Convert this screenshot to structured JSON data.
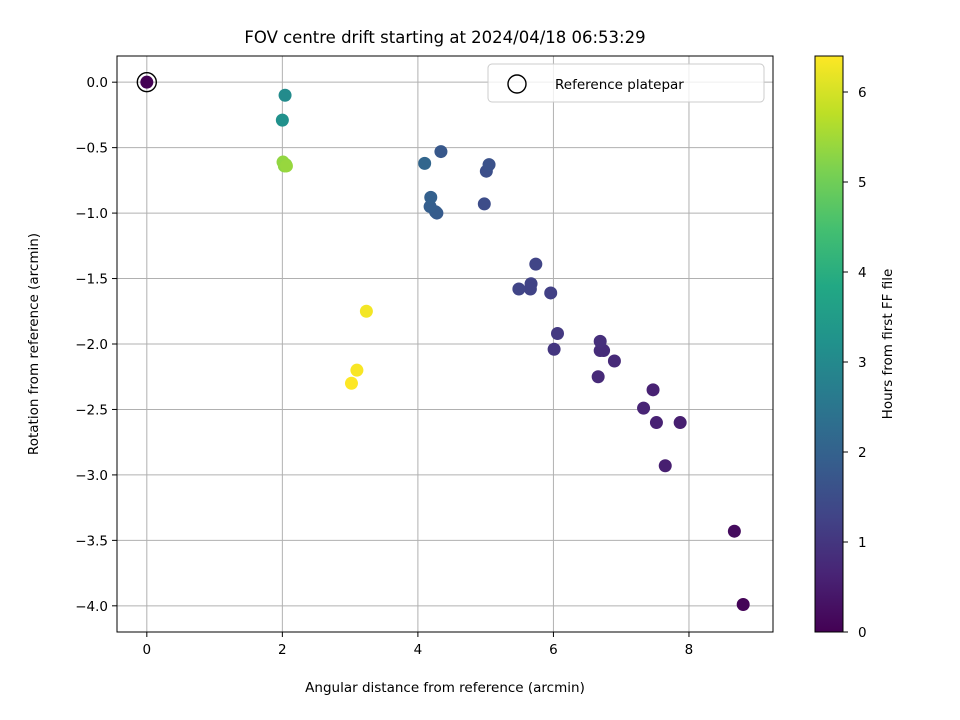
{
  "chart_data": {
    "type": "scatter",
    "title": "FOV centre drift starting at 2024/04/18 06:53:29",
    "xlabel": "Angular distance from reference (arcmin)",
    "ylabel": "Rotation from reference (arcmin)",
    "xlim": [
      -0.44,
      9.24
    ],
    "ylim": [
      -4.2,
      0.2
    ],
    "xticks": [
      0,
      2,
      4,
      6,
      8
    ],
    "xtick_labels": [
      "0",
      "2",
      "4",
      "6",
      "8"
    ],
    "yticks": [
      0.0,
      -0.5,
      -1.0,
      -1.5,
      -2.0,
      -2.5,
      -3.0,
      -3.5,
      -4.0
    ],
    "ytick_labels": [
      "0.0",
      "−0.5",
      "−1.0",
      "−1.5",
      "−2.0",
      "−2.5",
      "−3.0",
      "−3.5",
      "−4.0"
    ],
    "grid": true,
    "legend": {
      "placement": "top-right",
      "entries": [
        "Reference platepar"
      ]
    },
    "reference_point": {
      "x": 0,
      "y": 0,
      "hours": 0
    },
    "colorbar": {
      "label": "Hours from first FF file",
      "range": [
        0,
        6.4
      ],
      "ticks": [
        0,
        1,
        2,
        3,
        4,
        5,
        6
      ],
      "tick_labels": [
        "0",
        "1",
        "2",
        "3",
        "4",
        "5",
        "6"
      ],
      "colormap": "viridis"
    },
    "points": [
      {
        "x": 0.0,
        "y": 0.0,
        "hours": 0.0
      },
      {
        "x": 8.8,
        "y": -3.99,
        "hours": 0.05
      },
      {
        "x": 8.67,
        "y": -3.43,
        "hours": 0.2
      },
      {
        "x": 7.65,
        "y": -2.93,
        "hours": 0.55
      },
      {
        "x": 7.87,
        "y": -2.6,
        "hours": 0.55
      },
      {
        "x": 7.52,
        "y": -2.6,
        "hours": 0.6
      },
      {
        "x": 7.33,
        "y": -2.49,
        "hours": 0.65
      },
      {
        "x": 7.47,
        "y": -2.35,
        "hours": 0.6
      },
      {
        "x": 6.66,
        "y": -2.25,
        "hours": 0.75
      },
      {
        "x": 6.9,
        "y": -2.13,
        "hours": 0.75
      },
      {
        "x": 6.74,
        "y": -2.05,
        "hours": 0.8
      },
      {
        "x": 6.69,
        "y": -2.05,
        "hours": 0.8
      },
      {
        "x": 6.69,
        "y": -1.98,
        "hours": 0.85
      },
      {
        "x": 6.01,
        "y": -2.04,
        "hours": 1.0
      },
      {
        "x": 6.06,
        "y": -1.92,
        "hours": 1.05
      },
      {
        "x": 5.96,
        "y": -1.61,
        "hours": 1.2
      },
      {
        "x": 5.74,
        "y": -1.39,
        "hours": 1.3
      },
      {
        "x": 5.67,
        "y": -1.54,
        "hours": 1.25
      },
      {
        "x": 5.66,
        "y": -1.58,
        "hours": 1.25
      },
      {
        "x": 5.49,
        "y": -1.58,
        "hours": 1.3
      },
      {
        "x": 4.98,
        "y": -0.93,
        "hours": 1.5
      },
      {
        "x": 5.01,
        "y": -0.68,
        "hours": 1.55
      },
      {
        "x": 5.05,
        "y": -0.63,
        "hours": 1.6
      },
      {
        "x": 4.34,
        "y": -0.53,
        "hours": 1.75
      },
      {
        "x": 4.28,
        "y": -1.0,
        "hours": 1.8
      },
      {
        "x": 4.26,
        "y": -0.99,
        "hours": 1.85
      },
      {
        "x": 4.18,
        "y": -0.95,
        "hours": 1.9
      },
      {
        "x": 4.19,
        "y": -0.88,
        "hours": 1.95
      },
      {
        "x": 4.1,
        "y": -0.62,
        "hours": 2.1
      },
      {
        "x": 2.04,
        "y": -0.1,
        "hours": 3.05
      },
      {
        "x": 2.0,
        "y": -0.29,
        "hours": 3.2
      },
      {
        "x": 2.05,
        "y": -0.63,
        "hours": 5.2
      },
      {
        "x": 2.03,
        "y": -0.64,
        "hours": 5.3
      },
      {
        "x": 2.01,
        "y": -0.61,
        "hours": 5.35
      },
      {
        "x": 2.06,
        "y": -0.64,
        "hours": 5.4
      },
      {
        "x": 3.24,
        "y": -1.75,
        "hours": 6.3
      },
      {
        "x": 3.1,
        "y": -2.2,
        "hours": 6.35
      },
      {
        "x": 3.02,
        "y": -2.3,
        "hours": 6.4
      }
    ]
  }
}
